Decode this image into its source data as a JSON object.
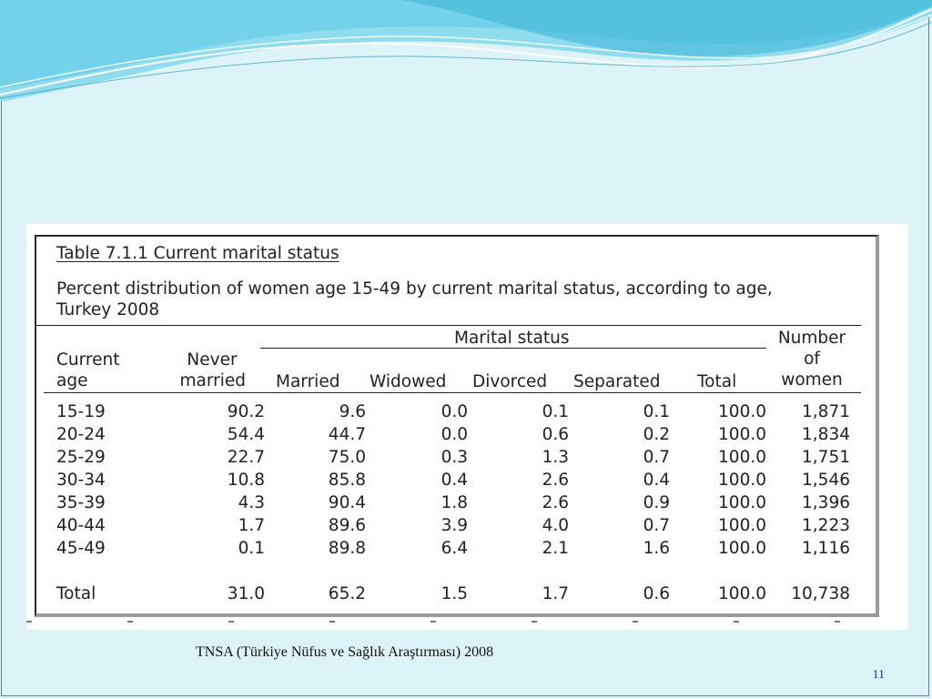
{
  "table": {
    "title": "Table 7.1.1  Current marital status",
    "subtitle_line1": "Percent distribution of women age 15-49 by current marital status, according to age,",
    "subtitle_line2": "Turkey 2008",
    "group_header": "Marital status",
    "headers": {
      "age": [
        "Current",
        "age"
      ],
      "never_married": [
        "Never",
        "married"
      ],
      "married": "Married",
      "widowed": "Widowed",
      "divorced": "Divorced",
      "separated": "Separated",
      "total": "Total",
      "number": [
        "Number",
        "of",
        "women"
      ]
    },
    "rows": [
      {
        "age": "15-19",
        "never": "90.2",
        "married": "9.6",
        "widowed": "0.0",
        "divorced": "0.1",
        "separated": "0.1",
        "total": "100.0",
        "number": "1,871"
      },
      {
        "age": "20-24",
        "never": "54.4",
        "married": "44.7",
        "widowed": "0.0",
        "divorced": "0.6",
        "separated": "0.2",
        "total": "100.0",
        "number": "1,834"
      },
      {
        "age": "25-29",
        "never": "22.7",
        "married": "75.0",
        "widowed": "0.3",
        "divorced": "1.3",
        "separated": "0.7",
        "total": "100.0",
        "number": "1,751"
      },
      {
        "age": "30-34",
        "never": "10.8",
        "married": "85.8",
        "widowed": "0.4",
        "divorced": "2.6",
        "separated": "0.4",
        "total": "100.0",
        "number": "1,546"
      },
      {
        "age": "35-39",
        "never": "4.3",
        "married": "90.4",
        "widowed": "1.8",
        "divorced": "2.6",
        "separated": "0.9",
        "total": "100.0",
        "number": "1,396"
      },
      {
        "age": "40-44",
        "never": "1.7",
        "married": "89.6",
        "widowed": "3.9",
        "divorced": "4.0",
        "separated": "0.7",
        "total": "100.0",
        "number": "1,223"
      },
      {
        "age": "45-49",
        "never": "0.1",
        "married": "89.8",
        "widowed": "6.4",
        "divorced": "2.1",
        "separated": "1.6",
        "total": "100.0",
        "number": "1,116"
      }
    ],
    "total_row": {
      "age": "Total",
      "never": "31.0",
      "married": "65.2",
      "widowed": "1.5",
      "divorced": "1.7",
      "separated": "0.6",
      "total": "100.0",
      "number": "10,738"
    }
  },
  "caption": "TNSA (Türkiye Nüfus ve Sağlık Araştırması) 2008",
  "page_number": "11",
  "colors": {
    "background": "#dcf3f8",
    "wave_dark": "#3fb6d6",
    "wave_light": "#8fdcef",
    "page_number": "#1e3b9a"
  }
}
